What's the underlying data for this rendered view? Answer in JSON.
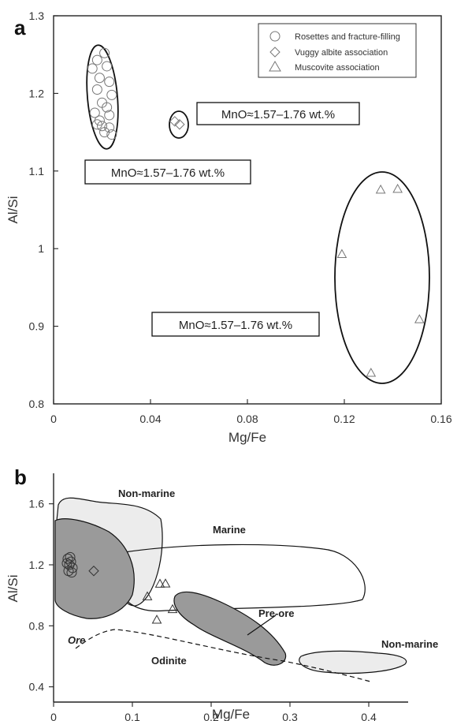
{
  "chart_data": [
    {
      "panel": "a",
      "type": "scatter",
      "xlabel": "Mg/Fe",
      "ylabel": "Al/Si",
      "xlim": [
        0,
        0.16
      ],
      "ylim": [
        0.8,
        1.3
      ],
      "xticks": [
        0,
        0.04,
        0.08,
        0.12,
        0.16
      ],
      "xtick_labels": [
        "0",
        "0.04",
        "0.08",
        "0.12",
        "0.16"
      ],
      "yticks": [
        0.8,
        0.9,
        1.0,
        1.1,
        1.2,
        1.3
      ],
      "ytick_labels": [
        "0.8",
        "0.9",
        "1",
        "1.1",
        "1.2",
        "1.3"
      ],
      "legend_position": "top-right",
      "series": [
        {
          "name": "Rosettes and fracture-filling",
          "marker": "circle",
          "points": [
            [
              0.018,
              1.243
            ],
            [
              0.021,
              1.252
            ],
            [
              0.016,
              1.232
            ],
            [
              0.022,
              1.235
            ],
            [
              0.019,
              1.22
            ],
            [
              0.023,
              1.215
            ],
            [
              0.018,
              1.205
            ],
            [
              0.024,
              1.198
            ],
            [
              0.02,
              1.188
            ],
            [
              0.022,
              1.182
            ],
            [
              0.017,
              1.175
            ],
            [
              0.023,
              1.172
            ],
            [
              0.019,
              1.165
            ],
            [
              0.02,
              1.158
            ],
            [
              0.023,
              1.156
            ],
            [
              0.021,
              1.15
            ],
            [
              0.024,
              1.147
            ],
            [
              0.018,
              1.16
            ]
          ]
        },
        {
          "name": "Vuggy albite association",
          "marker": "diamond",
          "points": [
            [
              0.05,
              1.164
            ],
            [
              0.052,
              1.16
            ]
          ]
        },
        {
          "name": "Muscovite association",
          "marker": "triangle",
          "points": [
            [
              0.135,
              1.076
            ],
            [
              0.142,
              1.077
            ],
            [
              0.119,
              0.993
            ],
            [
              0.151,
              0.909
            ],
            [
              0.131,
              0.84
            ]
          ]
        }
      ],
      "annotations": [
        "MnO≈1.57‒1.76 wt.%",
        "MnO≈1.57‒1.76 wt.%",
        "MnO≈1.57‒1.76 wt.%"
      ]
    },
    {
      "panel": "b",
      "type": "scatter",
      "xlabel": "Mg/Fe",
      "ylabel": "Al/Si",
      "xlim": [
        0,
        0.45
      ],
      "ylim": [
        0.3,
        1.8
      ],
      "xticks": [
        0,
        0.1,
        0.2,
        0.3,
        0.4
      ],
      "xtick_labels": [
        "0",
        "0.1",
        "0.2",
        "0.3",
        "0.4"
      ],
      "yticks": [
        0.4,
        0.8,
        1.2,
        1.6
      ],
      "ytick_labels": [
        "0.4",
        "0.8",
        "1.2",
        "1.6"
      ],
      "field_labels": [
        "Non-marine",
        "Marine",
        "Pre-ore",
        "Non-marine",
        "Ore",
        "Odinite"
      ],
      "series": [
        {
          "name": "Rosettes and fracture-filling",
          "marker": "circle",
          "points": [
            [
              0.018,
              1.24
            ],
            [
              0.022,
              1.22
            ],
            [
              0.02,
              1.2
            ],
            [
              0.024,
              1.18
            ],
            [
              0.019,
              1.16
            ],
            [
              0.023,
              1.15
            ],
            [
              0.021,
              1.25
            ],
            [
              0.017,
              1.21
            ]
          ]
        },
        {
          "name": "Vuggy albite association",
          "marker": "diamond",
          "points": [
            [
              0.051,
              1.16
            ]
          ]
        },
        {
          "name": "Muscovite association",
          "marker": "triangle",
          "points": [
            [
              0.119,
              0.993
            ],
            [
              0.131,
              0.84
            ],
            [
              0.135,
              1.076
            ],
            [
              0.142,
              1.077
            ],
            [
              0.151,
              0.909
            ]
          ]
        }
      ]
    }
  ],
  "colors": {
    "axis": "#222222",
    "marker": "#777777",
    "non_marine_fill": "#ececec",
    "ore_fill": "#9a9a9a",
    "pre_ore_fill": "#9a9a9a",
    "field_outline": "#111111"
  }
}
